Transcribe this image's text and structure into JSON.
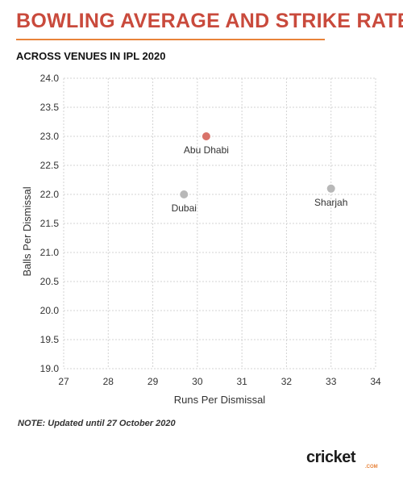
{
  "header": {
    "title": "BOWLING AVERAGE AND STRIKE RATE",
    "subtitle": "ACROSS VENUES IN IPL 2020"
  },
  "footer": {
    "note": "NOTE: Updated until 27 October 2020",
    "logo_word": "cricket",
    "logo_sub": ".COM"
  },
  "colors": {
    "title": "#c94a3c",
    "accent": "#e8833a",
    "highlight_point": "#d9736a",
    "point": "#b8b8b8",
    "grid": "#d3d3d3"
  },
  "chart_data": {
    "type": "scatter",
    "title": "BOWLING AVERAGE AND STRIKE RATE",
    "subtitle": "ACROSS VENUES IN IPL 2020",
    "xlabel": "Runs Per Dismissal",
    "ylabel": "Balls Per Dismissal",
    "xlim": [
      27,
      34
    ],
    "ylim": [
      19.0,
      24.0
    ],
    "xticks": [
      "27",
      "28",
      "29",
      "30",
      "31",
      "32",
      "33",
      "34"
    ],
    "yticks": [
      "19.0",
      "19.5",
      "20.0",
      "20.5",
      "21.0",
      "21.5",
      "22.0",
      "22.5",
      "23.0",
      "23.5",
      "24.0"
    ],
    "grid": true,
    "points": [
      {
        "label": "Abu Dhabi",
        "x": 30.2,
        "y": 23.0,
        "color": "#d9736a"
      },
      {
        "label": "Dubai",
        "x": 29.7,
        "y": 22.0,
        "color": "#b8b8b8"
      },
      {
        "label": "Sharjah",
        "x": 33.0,
        "y": 22.1,
        "color": "#b8b8b8"
      }
    ]
  }
}
